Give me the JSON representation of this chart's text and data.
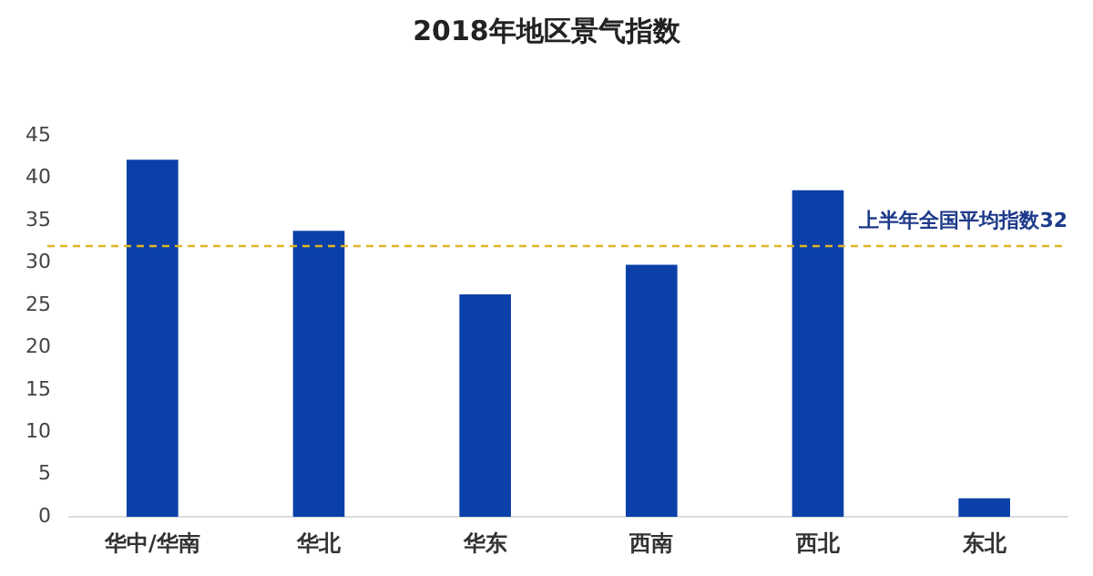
{
  "chart_data": {
    "type": "bar",
    "title": "2018年地区景气指数",
    "categories": [
      "华中/华南",
      "华北",
      "华东",
      "西南",
      "西北",
      "东北"
    ],
    "values": [
      42.2,
      33.8,
      26.3,
      29.8,
      38.6,
      2.2
    ],
    "color": "#0a40a8",
    "ylim": [
      0,
      45
    ],
    "yticks": [
      0,
      5,
      10,
      15,
      20,
      25,
      30,
      35,
      40,
      45
    ],
    "grid": false,
    "legend": false,
    "ref_lines": [
      {
        "axis": "y",
        "value": 32,
        "label": "上半年全国平均指数32",
        "color": "#e0b526",
        "line_style": "dashed"
      }
    ]
  }
}
